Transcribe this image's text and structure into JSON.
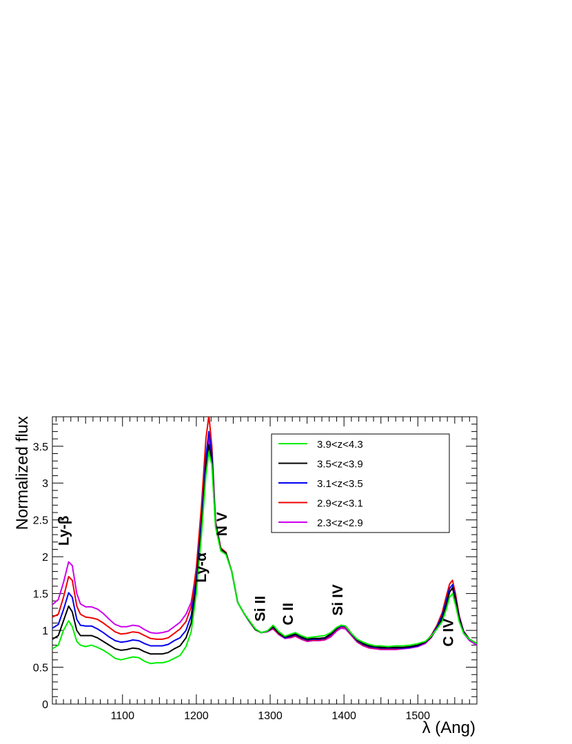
{
  "chart_data": {
    "type": "line",
    "xlabel": "λ (Ang)",
    "ylabel": "Normalized flux",
    "xlim": [
      1005,
      1580
    ],
    "ylim": [
      0,
      3.9
    ],
    "x_ticks": [
      1100,
      1200,
      1300,
      1400,
      1500
    ],
    "y_ticks": [
      0,
      0.5,
      1,
      1.5,
      2,
      2.5,
      3,
      3.5
    ],
    "y_tick_labels": [
      "0",
      "0.5",
      "1",
      "1.5",
      "2",
      "2.5",
      "3",
      "3.5"
    ],
    "legend_position": "top-right",
    "x": [
      1005,
      1013,
      1020,
      1027,
      1032,
      1038,
      1043,
      1050,
      1058,
      1066,
      1074,
      1082,
      1090,
      1098,
      1106,
      1114,
      1122,
      1130,
      1138,
      1146,
      1154,
      1162,
      1170,
      1178,
      1186,
      1193,
      1200,
      1207,
      1213,
      1217,
      1221,
      1226,
      1233,
      1240,
      1248,
      1256,
      1264,
      1272,
      1280,
      1288,
      1296,
      1304,
      1312,
      1320,
      1328,
      1334,
      1342,
      1350,
      1358,
      1366,
      1374,
      1382,
      1390,
      1396,
      1402,
      1410,
      1418,
      1426,
      1434,
      1442,
      1450,
      1460,
      1470,
      1480,
      1490,
      1500,
      1510,
      1518,
      1526,
      1533,
      1539,
      1543,
      1547,
      1551,
      1556,
      1562,
      1570,
      1580
    ],
    "series": [
      {
        "name": "3.9<z<4.3",
        "color": "#00ee00",
        "values": [
          0.75,
          0.8,
          1.0,
          1.13,
          1.05,
          0.85,
          0.8,
          0.78,
          0.8,
          0.77,
          0.73,
          0.68,
          0.62,
          0.6,
          0.62,
          0.64,
          0.63,
          0.58,
          0.55,
          0.56,
          0.56,
          0.58,
          0.62,
          0.66,
          0.78,
          0.98,
          1.5,
          2.3,
          3.1,
          3.42,
          3.25,
          2.4,
          2.08,
          2.03,
          1.8,
          1.38,
          1.24,
          1.13,
          1.02,
          0.97,
          0.99,
          1.07,
          0.98,
          0.92,
          0.95,
          0.97,
          0.93,
          0.9,
          0.91,
          0.92,
          0.93,
          0.97,
          1.04,
          1.07,
          1.06,
          0.96,
          0.88,
          0.84,
          0.81,
          0.79,
          0.79,
          0.78,
          0.79,
          0.79,
          0.8,
          0.82,
          0.85,
          0.92,
          1.02,
          1.12,
          1.3,
          1.45,
          1.5,
          1.35,
          1.12,
          0.96,
          0.88,
          0.82
        ]
      },
      {
        "name": "3.5<z<3.9",
        "color": "#000000",
        "values": [
          0.88,
          0.93,
          1.13,
          1.33,
          1.25,
          1.0,
          0.93,
          0.93,
          0.93,
          0.9,
          0.85,
          0.8,
          0.75,
          0.73,
          0.74,
          0.76,
          0.75,
          0.71,
          0.68,
          0.68,
          0.68,
          0.7,
          0.75,
          0.79,
          0.9,
          1.1,
          1.6,
          2.4,
          3.2,
          3.52,
          3.3,
          2.42,
          2.1,
          2.05,
          1.8,
          1.38,
          1.24,
          1.12,
          1.01,
          0.97,
          0.99,
          1.05,
          0.96,
          0.91,
          0.93,
          0.95,
          0.91,
          0.88,
          0.89,
          0.89,
          0.9,
          0.95,
          1.03,
          1.07,
          1.06,
          0.96,
          0.87,
          0.82,
          0.79,
          0.78,
          0.77,
          0.77,
          0.77,
          0.77,
          0.78,
          0.8,
          0.84,
          0.91,
          1.03,
          1.16,
          1.36,
          1.52,
          1.58,
          1.42,
          1.16,
          0.97,
          0.88,
          0.82
        ]
      },
      {
        "name": "3.1<z<3.5",
        "color": "#0000ee",
        "values": [
          1.03,
          1.08,
          1.28,
          1.51,
          1.45,
          1.15,
          1.07,
          1.06,
          1.06,
          1.02,
          0.97,
          0.91,
          0.86,
          0.84,
          0.85,
          0.87,
          0.86,
          0.82,
          0.79,
          0.79,
          0.79,
          0.81,
          0.86,
          0.9,
          1.0,
          1.2,
          1.7,
          2.5,
          3.35,
          3.7,
          3.4,
          2.45,
          2.1,
          2.05,
          1.8,
          1.38,
          1.24,
          1.12,
          1.01,
          0.97,
          0.99,
          1.04,
          0.96,
          0.9,
          0.92,
          0.94,
          0.9,
          0.87,
          0.88,
          0.88,
          0.89,
          0.94,
          1.02,
          1.06,
          1.05,
          0.95,
          0.86,
          0.81,
          0.78,
          0.77,
          0.76,
          0.76,
          0.76,
          0.76,
          0.77,
          0.79,
          0.84,
          0.92,
          1.05,
          1.2,
          1.42,
          1.57,
          1.62,
          1.45,
          1.18,
          0.98,
          0.88,
          0.82
        ]
      },
      {
        "name": "2.9<z<3.1",
        "color": "#ee0000",
        "values": [
          1.18,
          1.22,
          1.45,
          1.73,
          1.68,
          1.33,
          1.22,
          1.18,
          1.17,
          1.15,
          1.1,
          1.04,
          0.98,
          0.95,
          0.96,
          0.98,
          0.97,
          0.93,
          0.89,
          0.88,
          0.88,
          0.9,
          0.96,
          1.02,
          1.12,
          1.32,
          1.85,
          2.7,
          3.6,
          3.92,
          3.5,
          2.48,
          2.12,
          2.06,
          1.8,
          1.38,
          1.24,
          1.12,
          1.01,
          0.97,
          0.99,
          1.03,
          0.95,
          0.9,
          0.91,
          0.93,
          0.89,
          0.86,
          0.87,
          0.87,
          0.88,
          0.93,
          1.01,
          1.05,
          1.04,
          0.94,
          0.85,
          0.8,
          0.77,
          0.76,
          0.75,
          0.75,
          0.75,
          0.76,
          0.77,
          0.79,
          0.84,
          0.93,
          1.07,
          1.24,
          1.48,
          1.63,
          1.68,
          1.5,
          1.2,
          0.99,
          0.88,
          0.82
        ]
      },
      {
        "name": "2.3<z<2.9",
        "color": "#cc00ee",
        "values": [
          1.35,
          1.42,
          1.65,
          1.93,
          1.88,
          1.5,
          1.36,
          1.32,
          1.32,
          1.29,
          1.23,
          1.15,
          1.08,
          1.05,
          1.05,
          1.07,
          1.06,
          1.01,
          0.97,
          0.96,
          0.97,
          0.99,
          1.05,
          1.11,
          1.22,
          1.38,
          1.8,
          2.55,
          3.3,
          3.6,
          3.3,
          2.42,
          2.1,
          2.05,
          1.8,
          1.38,
          1.24,
          1.12,
          1.01,
          0.97,
          0.98,
          1.02,
          0.94,
          0.89,
          0.9,
          0.92,
          0.88,
          0.85,
          0.86,
          0.86,
          0.87,
          0.91,
          0.99,
          1.03,
          1.02,
          0.93,
          0.84,
          0.79,
          0.76,
          0.75,
          0.74,
          0.74,
          0.74,
          0.75,
          0.76,
          0.78,
          0.82,
          0.9,
          1.03,
          1.18,
          1.38,
          1.52,
          1.57,
          1.42,
          1.15,
          0.96,
          0.86,
          0.8
        ]
      }
    ],
    "annotations": [
      {
        "text": "Ly-β",
        "x": 1027,
        "y": 2.15
      },
      {
        "text": "Ly-α",
        "x": 1213,
        "y": 1.65
      },
      {
        "text": "N V",
        "x": 1241,
        "y": 2.28
      },
      {
        "text": "Si II",
        "x": 1293,
        "y": 1.12
      },
      {
        "text": "C II",
        "x": 1331,
        "y": 1.07
      },
      {
        "text": "Si IV",
        "x": 1398,
        "y": 1.2
      },
      {
        "text": "C IV",
        "x": 1548,
        "y": 0.78
      }
    ]
  }
}
